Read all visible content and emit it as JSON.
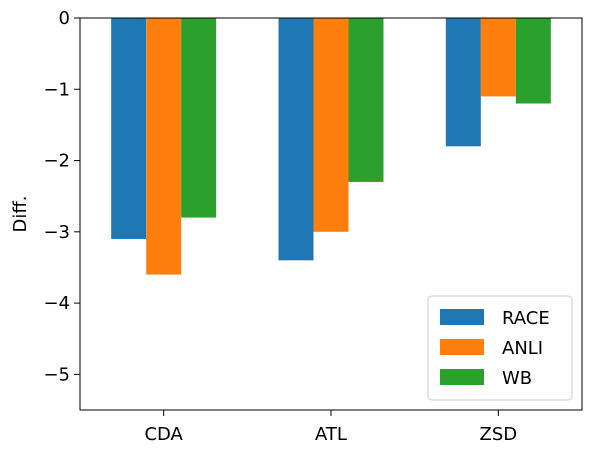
{
  "chart_data": {
    "type": "bar",
    "title": "",
    "xlabel": "",
    "ylabel": "Diff.",
    "categories": [
      "CDA",
      "ATL",
      "ZSD"
    ],
    "series": [
      {
        "name": "RACE",
        "color": "#1f77b4",
        "values": [
          -3.1,
          -3.4,
          -1.8
        ]
      },
      {
        "name": "ANLI",
        "color": "#ff7f0e",
        "values": [
          -3.6,
          -3.0,
          -1.1
        ]
      },
      {
        "name": "WB",
        "color": "#2ca02c",
        "values": [
          -2.8,
          -2.3,
          -1.2
        ]
      }
    ],
    "ylim": [
      -5.5,
      0
    ],
    "yticks": [
      0,
      -1,
      -2,
      -3,
      -4,
      -5
    ],
    "ytick_labels": [
      "0",
      "−1",
      "−2",
      "−3",
      "−4",
      "−5"
    ],
    "grid": false,
    "legend_position": "bottom-right"
  }
}
